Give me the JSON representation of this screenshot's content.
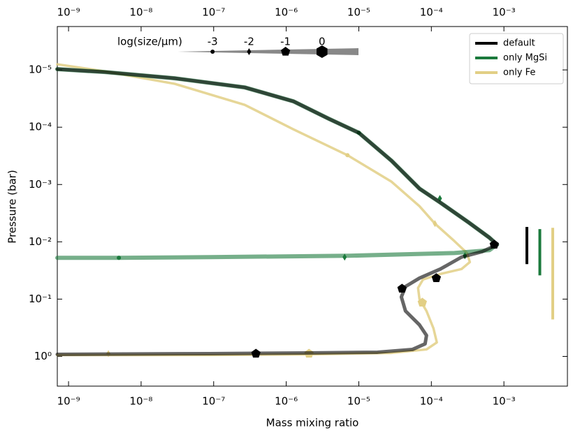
{
  "chart_data": {
    "type": "line",
    "xlabel": "Mass mixing ratio",
    "ylabel": "Pressure (bar)",
    "xscale": "log",
    "yscale": "log",
    "xlim": [
      7e-10,
      0.0075
    ],
    "ylim": [
      3.3,
      1.75e-06
    ],
    "xticks": [
      {
        "value": 1e-09,
        "label": "10⁻⁹"
      },
      {
        "value": 1e-08,
        "label": "10⁻⁸"
      },
      {
        "value": 1e-07,
        "label": "10⁻⁷"
      },
      {
        "value": 1e-06,
        "label": "10⁻⁶"
      },
      {
        "value": 1e-05,
        "label": "10⁻⁵"
      },
      {
        "value": 0.0001,
        "label": "10⁻⁴"
      },
      {
        "value": 0.001,
        "label": "10⁻³"
      }
    ],
    "yticks": [
      {
        "value": 1e-05,
        "label": "10⁻⁵"
      },
      {
        "value": 0.0001,
        "label": "10⁻⁴"
      },
      {
        "value": 0.001,
        "label": "10⁻³"
      },
      {
        "value": 0.01,
        "label": "10⁻²"
      },
      {
        "value": 0.1,
        "label": "10⁻¹"
      },
      {
        "value": 1,
        "label": "10⁰"
      }
    ],
    "legend": "upper right",
    "size_legend": {
      "title": "log(size/μm)",
      "ticks": [
        -3,
        -2,
        -1,
        0
      ],
      "range": [
        -4,
        1
      ]
    },
    "series": [
      {
        "name": "only Fe",
        "color": "#e2cf85",
        "x": [
          7e-10,
          3.17e-09,
          2.91e-08,
          2.68e-07,
          1.26e-06,
          6.98e-06,
          2.83e-05,
          6.86e-05,
          0.000112,
          0.000208,
          0.00031,
          0.000339,
          0.00026,
          0.000133,
          7.66e-05,
          6.56e-05,
          6.86e-05,
          8.57e-05,
          0.000107,
          0.000119,
          8.57e-05,
          2.83e-05,
          2.11e-06,
          8.8e-08,
          3.54e-09,
          7e-10
        ],
        "values": [
          7.98e-06,
          1.06e-05,
          1.75e-05,
          4.07e-05,
          0.000109,
          0.000308,
          0.000894,
          0.00239,
          0.00482,
          0.00973,
          0.0157,
          0.0226,
          0.0299,
          0.0364,
          0.0456,
          0.0638,
          0.1,
          0.161,
          0.325,
          0.57,
          0.755,
          0.869,
          0.92,
          0.946,
          0.946,
          0.946
        ],
        "marker_x": [
          6.98e-06,
          0.000112,
          0.00029,
          7.5e-05,
          2.06e-06,
          3.54e-09
        ],
        "marker_values": [
          0.000308,
          0.00482,
          0.0175,
          0.115,
          0.894,
          0.894
        ],
        "marker_sizes": [
          -3,
          -2,
          -2,
          -1,
          -1,
          -2
        ],
        "range": [
          0.0057,
          0.226
        ]
      },
      {
        "name": "only MgSi",
        "color": "#1b7a3c",
        "x": [
          7e-10,
          3.17e-09,
          2.91e-08,
          2.68e-07,
          1.26e-06,
          3.84e-06,
          1e-05,
          2.83e-05,
          6.86e-05,
          0.000133,
          0.000324,
          0.00063,
          0.000805,
          0.00063,
          0.000208,
          7.46e-06,
          8.8e-08,
          4.94e-09,
          7e-10
        ],
        "values": [
          9.7e-06,
          1.09e-05,
          1.4e-05,
          2.02e-05,
          3.54e-05,
          7.1e-05,
          0.000125,
          0.000385,
          0.00118,
          0.00207,
          0.00456,
          0.00845,
          0.0112,
          0.014,
          0.0157,
          0.0175,
          0.0185,
          0.019,
          0.019
        ],
        "marker_x": [
          1e-05,
          0.000131,
          0.00029,
          6.38e-06,
          4.94e-09
        ],
        "marker_values": [
          0.000125,
          0.00175,
          0.0175,
          0.0185,
          0.019
        ],
        "marker_sizes": [
          -3,
          -2,
          -2,
          -2,
          -3
        ],
        "range": [
          0.006,
          0.0385
        ]
      },
      {
        "name": "default",
        "color": "#000000",
        "x": [
          7e-10,
          3.17e-09,
          2.91e-08,
          2.68e-07,
          1.26e-06,
          3.84e-06,
          1e-05,
          2.83e-05,
          6.86e-05,
          0.000133,
          0.000324,
          0.00063,
          0.000805,
          0.000505,
          0.00026,
          0.000133,
          6.86e-05,
          4.4e-05,
          3.86e-05,
          4.4e-05,
          6.86e-05,
          8.57e-05,
          8.2e-05,
          5.5e-05,
          1.81e-05,
          1.97e-06,
          8.8e-08,
          7e-10
        ],
        "values": [
          9.7e-06,
          1.09e-05,
          1.4e-05,
          2.02e-05,
          3.54e-05,
          7.1e-05,
          0.000125,
          0.000385,
          0.00118,
          0.00207,
          0.00456,
          0.00845,
          0.0112,
          0.0148,
          0.0185,
          0.0299,
          0.043,
          0.0603,
          0.0918,
          0.161,
          0.282,
          0.43,
          0.603,
          0.755,
          0.845,
          0.869,
          0.894,
          0.92
        ],
        "marker_x": [
          0.000736,
          0.000117,
          3.94e-05,
          3.82e-07
        ],
        "marker_values": [
          0.0112,
          0.043,
          0.0656,
          0.894
        ],
        "marker_sizes": [
          -1,
          -1,
          -1,
          -1
        ],
        "range": [
          0.0055,
          0.0245
        ]
      }
    ]
  }
}
